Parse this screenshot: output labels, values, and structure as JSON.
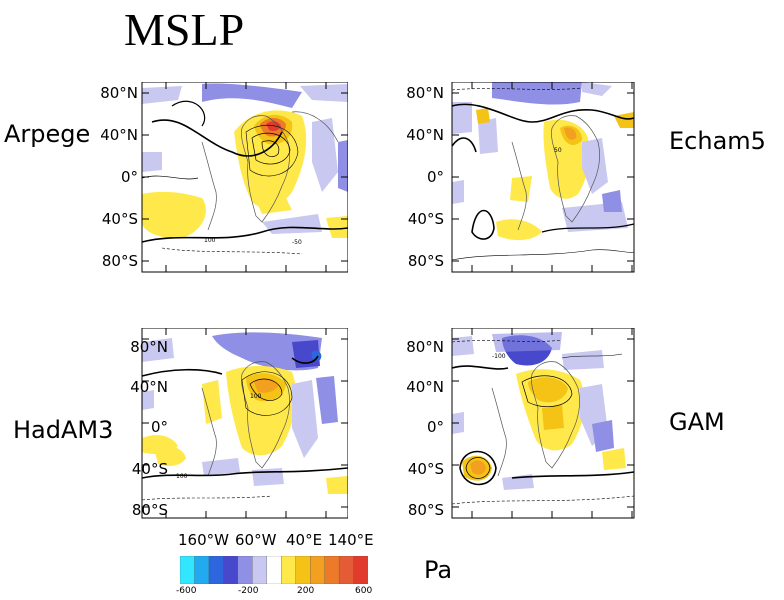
{
  "title": "MSLP",
  "unit": "Pa",
  "models": [
    {
      "name": "Arpege"
    },
    {
      "name": "Echam5"
    },
    {
      "name": "HadAM3"
    },
    {
      "name": "GAM"
    }
  ],
  "lat_ticks": [
    "80°N",
    "40°N",
    "0°",
    "40°S",
    "80°S"
  ],
  "lon_ticks": [
    "160°W",
    "60°W",
    "40°E",
    "140°E"
  ],
  "colorbar": {
    "min": -600,
    "max": 600,
    "tick_labels": [
      "-600",
      "-200",
      "200",
      "600"
    ],
    "colors": [
      "#33e6ff",
      "#22aaf0",
      "#2e66dd",
      "#4848cc",
      "#8f8fe6",
      "#c8c8f0",
      "#ffffff",
      "#ffe84a",
      "#f5c316",
      "#f39f1f",
      "#ec7a28",
      "#e35c36",
      "#e03b2c"
    ]
  },
  "contour_labels": [
    "100",
    "-50",
    "50",
    "100",
    "100",
    "-100"
  ]
}
